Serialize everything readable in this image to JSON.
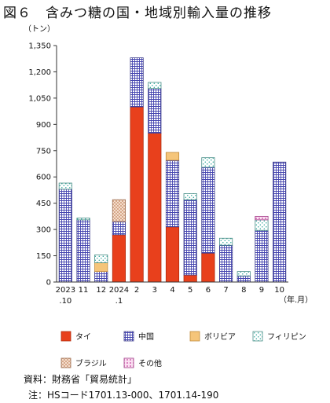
{
  "figure_title": "図６　含みつ糖の国・地域別輸入量の推移",
  "source_lines": [
    "資料：財務省「貿易統計」",
    "注：HSコード1701.13-000、1701.14-190"
  ],
  "colors": {
    "タイ": "#e8401c",
    "中国": "#5a5ab8",
    "ボリビア": "#f5c57a",
    "フィリピン": "#7ec8c0",
    "ブラジル": "#d9a88a",
    "その他": "#d65ab5"
  },
  "chart_data": {
    "type": "bar",
    "stacked": true,
    "ylabel": "（トン）",
    "xlabel": "（年.月）",
    "ylim": [
      0,
      1350
    ],
    "yticks": [
      0,
      150,
      300,
      450,
      600,
      750,
      900,
      1050,
      1200,
      1350
    ],
    "ytick_labels": [
      "0",
      "150",
      "300",
      "450",
      "600",
      "750",
      "900",
      "1,050",
      "1,200",
      "1,350"
    ],
    "categories": [
      "2023.10",
      "11",
      "12",
      "2024.1",
      "2",
      "3",
      "4",
      "5",
      "6",
      "7",
      "8",
      "9",
      "10"
    ],
    "category_labels": [
      [
        "2023",
        ".10"
      ],
      [
        "11"
      ],
      [
        "12"
      ],
      [
        "2024",
        ".1"
      ],
      [
        "2"
      ],
      [
        "3"
      ],
      [
        "4"
      ],
      [
        "5"
      ],
      [
        "6"
      ],
      [
        "7"
      ],
      [
        "8"
      ],
      [
        "9"
      ],
      [
        "10"
      ]
    ],
    "series": [
      {
        "name": "タイ",
        "values": [
          0,
          0,
          0,
          270,
          1000,
          850,
          315,
          40,
          165,
          0,
          0,
          0,
          0
        ]
      },
      {
        "name": "中国",
        "values": [
          530,
          355,
          60,
          75,
          280,
          255,
          380,
          430,
          490,
          210,
          35,
          295,
          685
        ]
      },
      {
        "name": "ボリビア",
        "values": [
          0,
          0,
          50,
          0,
          0,
          0,
          45,
          0,
          0,
          0,
          0,
          0,
          0
        ]
      },
      {
        "name": "フィリピン",
        "values": [
          35,
          10,
          45,
          0,
          0,
          35,
          0,
          35,
          55,
          40,
          25,
          60,
          0
        ]
      },
      {
        "name": "ブラジル",
        "values": [
          0,
          0,
          0,
          125,
          0,
          0,
          0,
          0,
          0,
          0,
          0,
          0,
          0
        ]
      },
      {
        "name": "その他",
        "values": [
          0,
          0,
          0,
          0,
          0,
          0,
          0,
          0,
          0,
          0,
          0,
          20,
          0
        ]
      }
    ],
    "grid": false,
    "legend_position": "bottom"
  }
}
